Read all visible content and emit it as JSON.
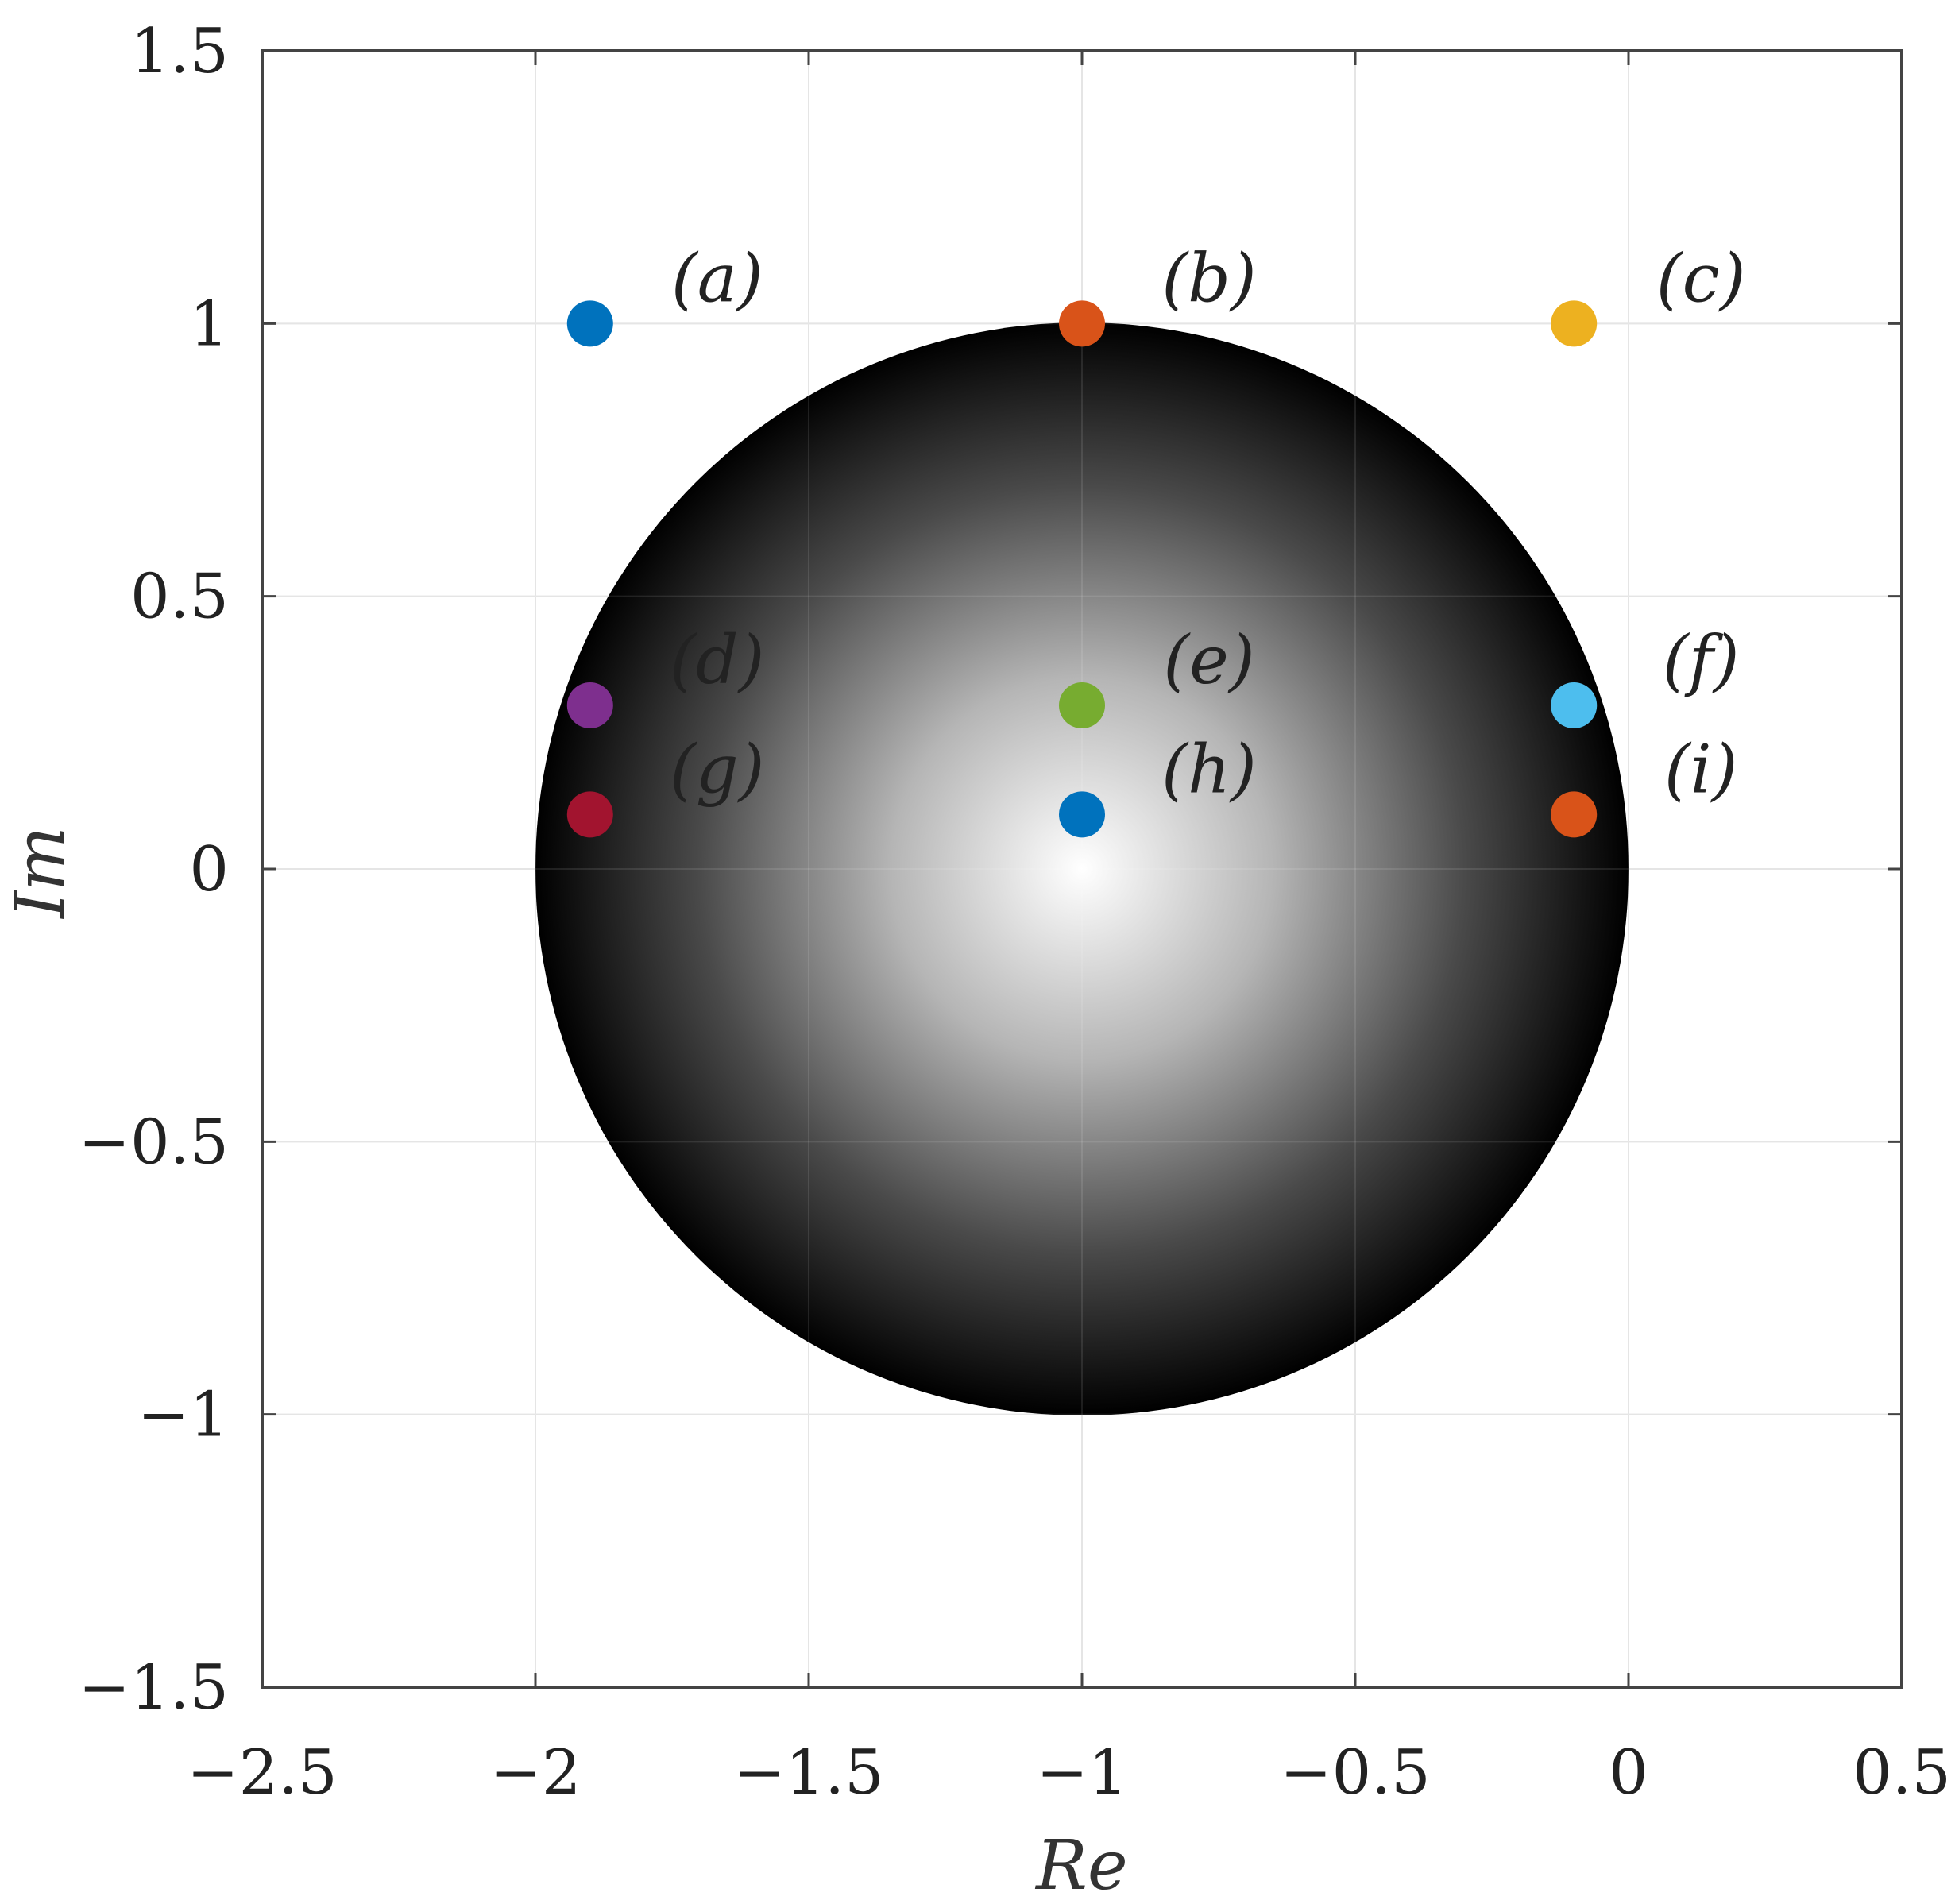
{
  "chart_data": {
    "type": "scatter",
    "title": "",
    "xlabel": "Re",
    "ylabel": "Im",
    "xlim": [
      -2.5,
      0.5
    ],
    "ylim": [
      -1.5,
      1.5
    ],
    "xticks": [
      "−2.5",
      "−2",
      "−1.5",
      "−1",
      "−0.5",
      "0",
      "0.5"
    ],
    "yticks": [
      "−1.5",
      "−1",
      "−0.5",
      "0",
      "0.5",
      "1",
      "1.5"
    ],
    "grid": true,
    "disk": {
      "center": [
        -1,
        0
      ],
      "radius": 1,
      "fill": "radial gradient white center to black edge"
    },
    "points": [
      {
        "label": "(a)",
        "x": -1.9,
        "y": 1.0,
        "color": "#0072bd"
      },
      {
        "label": "(b)",
        "x": -1.0,
        "y": 1.0,
        "color": "#d95319"
      },
      {
        "label": "(c)",
        "x": -0.1,
        "y": 1.0,
        "color": "#edb120"
      },
      {
        "label": "(d)",
        "x": -1.9,
        "y": 0.3,
        "color": "#7e2f8e"
      },
      {
        "label": "(e)",
        "x": -1.0,
        "y": 0.3,
        "color": "#77ac30"
      },
      {
        "label": "(f)",
        "x": -0.1,
        "y": 0.3,
        "color": "#4dbeee"
      },
      {
        "label": "(g)",
        "x": -1.9,
        "y": 0.1,
        "color": "#a2142f"
      },
      {
        "label": "(h)",
        "x": -1.0,
        "y": 0.1,
        "color": "#0072bd"
      },
      {
        "label": "(i)",
        "x": -0.1,
        "y": 0.1,
        "color": "#d95319"
      }
    ]
  }
}
